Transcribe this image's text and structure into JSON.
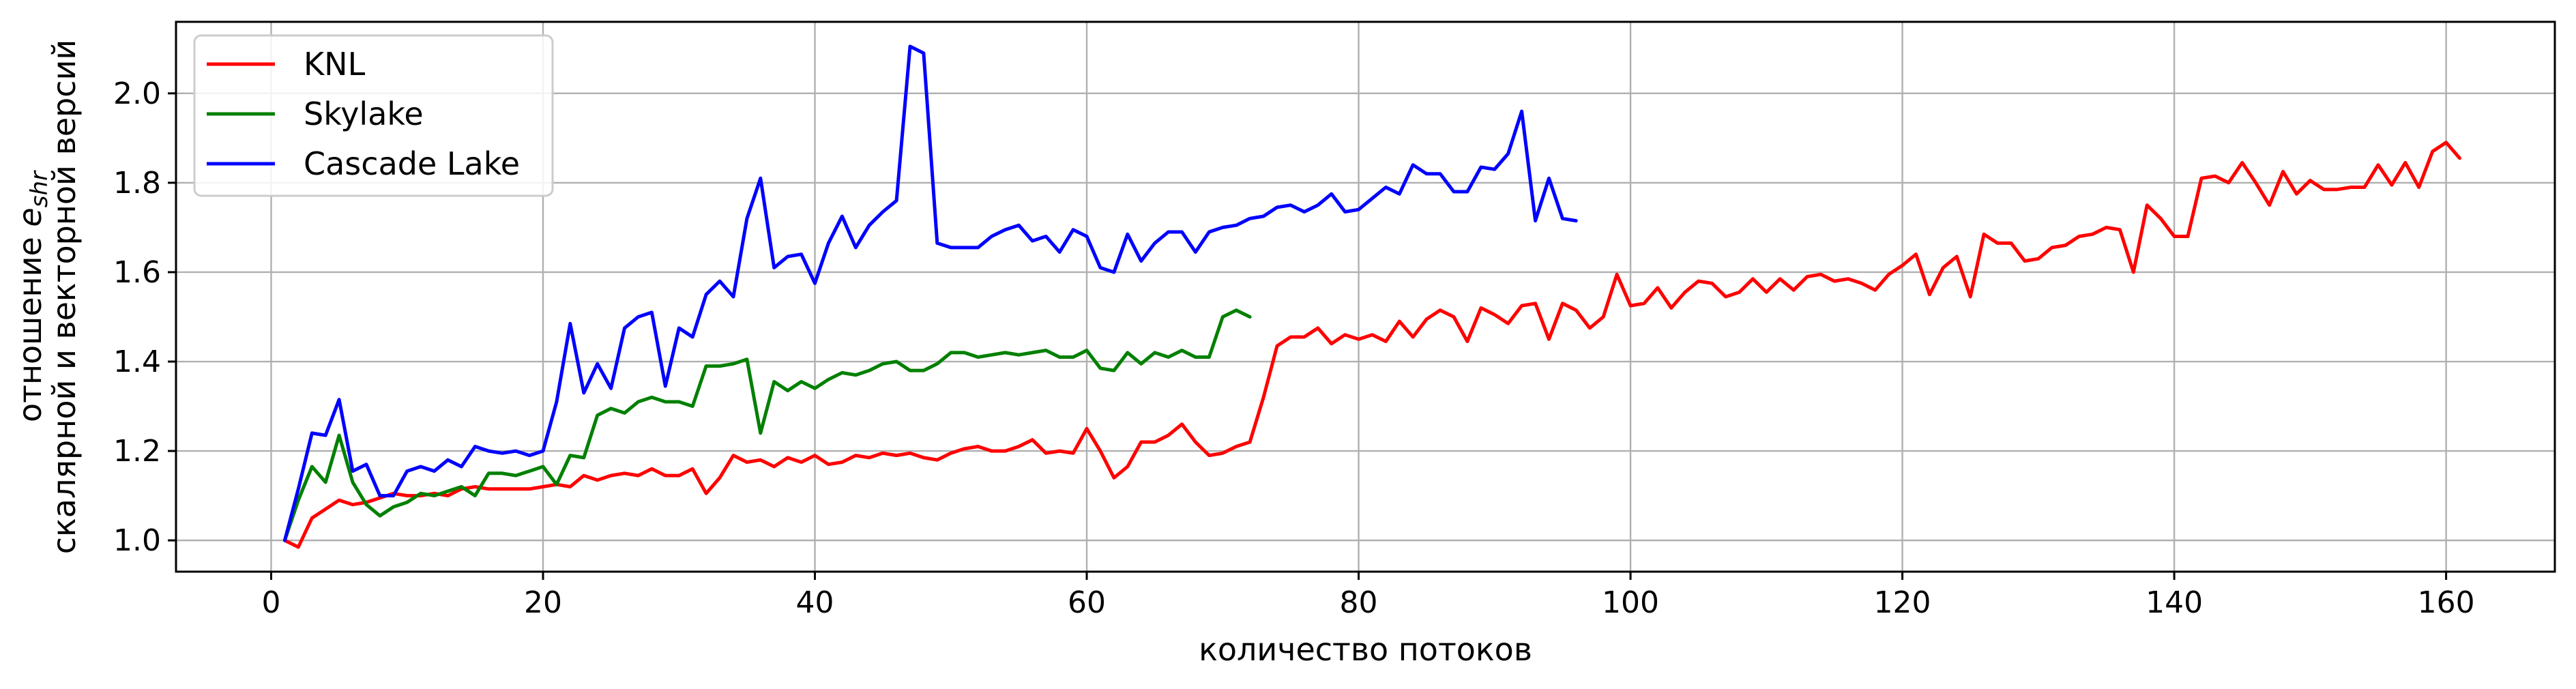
{
  "chart_data": {
    "type": "line",
    "xlabel": "количество потоков",
    "ylabel_line1_prefix": "отношение ",
    "ylabel_line1_var": "e",
    "ylabel_line1_sub": "shr",
    "ylabel_line2": "скалярной и векторной версий",
    "xlim": [
      -7,
      168
    ],
    "ylim": [
      0.93,
      2.16
    ],
    "xticks": [
      0,
      20,
      40,
      60,
      80,
      100,
      120,
      140,
      160
    ],
    "yticks": [
      1.0,
      1.2,
      1.4,
      1.6,
      1.8,
      2.0
    ],
    "ytick_labels": [
      "1.0",
      "1.2",
      "1.4",
      "1.6",
      "1.8",
      "2.0"
    ],
    "grid": true,
    "legend_position": "upper-left",
    "series": [
      {
        "name": "KNL",
        "color": "#ff0000",
        "x_start": 1,
        "values": [
          1.0,
          0.985,
          1.05,
          1.07,
          1.09,
          1.08,
          1.085,
          1.095,
          1.105,
          1.1,
          1.1,
          1.105,
          1.1,
          1.115,
          1.12,
          1.115,
          1.115,
          1.115,
          1.115,
          1.12,
          1.125,
          1.12,
          1.145,
          1.135,
          1.145,
          1.15,
          1.145,
          1.16,
          1.145,
          1.145,
          1.16,
          1.105,
          1.14,
          1.19,
          1.175,
          1.18,
          1.165,
          1.185,
          1.175,
          1.19,
          1.17,
          1.175,
          1.19,
          1.185,
          1.195,
          1.19,
          1.195,
          1.185,
          1.18,
          1.195,
          1.205,
          1.21,
          1.2,
          1.2,
          1.21,
          1.225,
          1.195,
          1.2,
          1.195,
          1.25,
          1.2,
          1.14,
          1.165,
          1.22,
          1.22,
          1.235,
          1.26,
          1.22,
          1.19,
          1.195,
          1.21,
          1.22,
          1.32,
          1.435,
          1.455,
          1.455,
          1.475,
          1.44,
          1.46,
          1.45,
          1.46,
          1.445,
          1.49,
          1.455,
          1.495,
          1.515,
          1.5,
          1.445,
          1.52,
          1.505,
          1.485,
          1.525,
          1.53,
          1.45,
          1.53,
          1.515,
          1.475,
          1.5,
          1.595,
          1.525,
          1.53,
          1.565,
          1.52,
          1.555,
          1.58,
          1.575,
          1.545,
          1.555,
          1.585,
          1.555,
          1.585,
          1.56,
          1.59,
          1.595,
          1.58,
          1.585,
          1.575,
          1.56,
          1.595,
          1.615,
          1.64,
          1.55,
          1.61,
          1.635,
          1.545,
          1.685,
          1.665,
          1.665,
          1.625,
          1.63,
          1.655,
          1.66,
          1.68,
          1.685,
          1.7,
          1.695,
          1.6,
          1.75,
          1.72,
          1.68,
          1.68,
          1.81,
          1.815,
          1.8,
          1.845,
          1.8,
          1.75,
          1.825,
          1.775,
          1.805,
          1.785,
          1.785,
          1.79,
          1.79,
          1.84,
          1.795,
          1.845,
          1.79,
          1.87,
          1.89,
          1.855
        ]
      },
      {
        "name": "Skylake",
        "color": "#008000",
        "x_start": 1,
        "values": [
          1.0,
          1.09,
          1.165,
          1.13,
          1.235,
          1.13,
          1.08,
          1.055,
          1.075,
          1.085,
          1.105,
          1.1,
          1.11,
          1.12,
          1.1,
          1.15,
          1.15,
          1.145,
          1.155,
          1.165,
          1.125,
          1.19,
          1.185,
          1.28,
          1.295,
          1.285,
          1.31,
          1.32,
          1.31,
          1.31,
          1.3,
          1.39,
          1.39,
          1.395,
          1.405,
          1.24,
          1.355,
          1.335,
          1.355,
          1.34,
          1.36,
          1.375,
          1.37,
          1.38,
          1.395,
          1.4,
          1.38,
          1.38,
          1.395,
          1.42,
          1.42,
          1.41,
          1.415,
          1.42,
          1.415,
          1.42,
          1.425,
          1.41,
          1.41,
          1.425,
          1.385,
          1.38,
          1.42,
          1.395,
          1.42,
          1.41,
          1.425,
          1.41,
          1.41,
          1.5,
          1.515,
          1.5
        ]
      },
      {
        "name": "Cascade Lake",
        "color": "#0000ff",
        "x_start": 1,
        "values": [
          1.0,
          1.115,
          1.24,
          1.235,
          1.315,
          1.155,
          1.17,
          1.1,
          1.1,
          1.155,
          1.165,
          1.155,
          1.18,
          1.165,
          1.21,
          1.2,
          1.195,
          1.2,
          1.19,
          1.2,
          1.31,
          1.485,
          1.33,
          1.395,
          1.34,
          1.475,
          1.5,
          1.51,
          1.345,
          1.475,
          1.455,
          1.55,
          1.58,
          1.545,
          1.72,
          1.81,
          1.61,
          1.635,
          1.64,
          1.575,
          1.665,
          1.725,
          1.655,
          1.705,
          1.735,
          1.76,
          2.105,
          2.09,
          1.665,
          1.655,
          1.655,
          1.655,
          1.68,
          1.695,
          1.705,
          1.67,
          1.68,
          1.645,
          1.695,
          1.68,
          1.61,
          1.6,
          1.685,
          1.625,
          1.665,
          1.69,
          1.69,
          1.645,
          1.69,
          1.7,
          1.705,
          1.72,
          1.725,
          1.745,
          1.75,
          1.735,
          1.75,
          1.775,
          1.735,
          1.74,
          1.765,
          1.79,
          1.775,
          1.84,
          1.82,
          1.82,
          1.78,
          1.78,
          1.835,
          1.83,
          1.865,
          1.96,
          1.715,
          1.81,
          1.72,
          1.715
        ]
      }
    ]
  }
}
